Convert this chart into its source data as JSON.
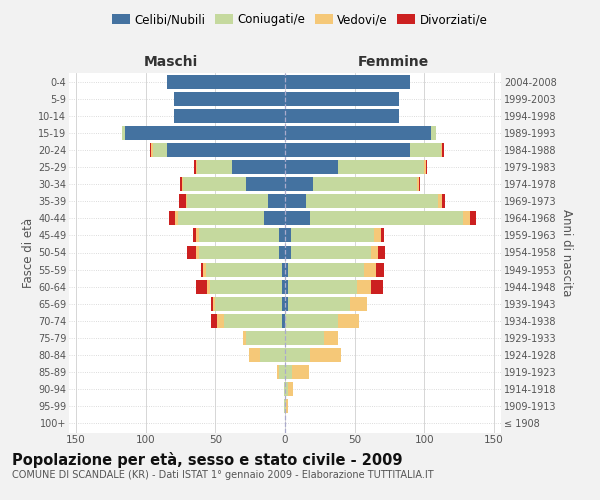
{
  "age_groups": [
    "100+",
    "95-99",
    "90-94",
    "85-89",
    "80-84",
    "75-79",
    "70-74",
    "65-69",
    "60-64",
    "55-59",
    "50-54",
    "45-49",
    "40-44",
    "35-39",
    "30-34",
    "25-29",
    "20-24",
    "15-19",
    "10-14",
    "5-9",
    "0-4"
  ],
  "birth_years": [
    "≤ 1908",
    "1909-1913",
    "1914-1918",
    "1919-1923",
    "1924-1928",
    "1929-1933",
    "1934-1938",
    "1939-1943",
    "1944-1948",
    "1949-1953",
    "1954-1958",
    "1959-1963",
    "1964-1968",
    "1969-1973",
    "1974-1978",
    "1979-1983",
    "1984-1988",
    "1989-1993",
    "1994-1998",
    "1999-2003",
    "2004-2008"
  ],
  "males": {
    "celibe": [
      0,
      0,
      0,
      0,
      0,
      0,
      2,
      2,
      2,
      2,
      4,
      4,
      15,
      12,
      28,
      38,
      85,
      115,
      80,
      80,
      85
    ],
    "coniugato": [
      0,
      1,
      1,
      4,
      18,
      28,
      42,
      48,
      52,
      55,
      58,
      58,
      62,
      58,
      45,
      25,
      10,
      2,
      0,
      0,
      0
    ],
    "vedovo": [
      0,
      0,
      0,
      2,
      8,
      2,
      5,
      2,
      2,
      2,
      2,
      2,
      2,
      1,
      1,
      1,
      1,
      0,
      0,
      0,
      0
    ],
    "divorziato": [
      0,
      0,
      0,
      0,
      0,
      0,
      4,
      1,
      8,
      1,
      6,
      2,
      4,
      5,
      1,
      1,
      1,
      0,
      0,
      0,
      0
    ]
  },
  "females": {
    "nubile": [
      0,
      0,
      0,
      0,
      0,
      0,
      0,
      2,
      2,
      2,
      4,
      4,
      18,
      15,
      20,
      38,
      90,
      105,
      82,
      82,
      90
    ],
    "coniugata": [
      0,
      1,
      2,
      5,
      18,
      28,
      38,
      45,
      50,
      55,
      58,
      60,
      110,
      95,
      75,
      62,
      22,
      3,
      0,
      0,
      0
    ],
    "vedova": [
      0,
      1,
      4,
      12,
      22,
      10,
      15,
      12,
      10,
      8,
      5,
      5,
      5,
      3,
      1,
      1,
      1,
      0,
      0,
      0,
      0
    ],
    "divorziata": [
      0,
      0,
      0,
      0,
      0,
      0,
      0,
      0,
      8,
      6,
      5,
      2,
      4,
      2,
      1,
      1,
      1,
      0,
      0,
      0,
      0
    ]
  },
  "colors": {
    "celibe": "#4472a0",
    "coniugato": "#c5d99e",
    "vedovo": "#f5c878",
    "divorziato": "#cc2020"
  },
  "legend_labels": [
    "Celibi/Nubili",
    "Coniugati/e",
    "Vedovi/e",
    "Divorziati/e"
  ],
  "xlim": 155,
  "title": "Popolazione per età, sesso e stato civile - 2009",
  "subtitle": "COMUNE DI SCANDALE (KR) - Dati ISTAT 1° gennaio 2009 - Elaborazione TUTTITALIA.IT",
  "maschi_label": "Maschi",
  "femmine_label": "Femmine",
  "ylabel_left": "Fasce di età",
  "ylabel_right": "Anni di nascita",
  "bg_color": "#f2f2f2",
  "plot_bg_color": "#ffffff",
  "grid_color": "#d0d0d0",
  "center_line_color": "#aaaacc"
}
